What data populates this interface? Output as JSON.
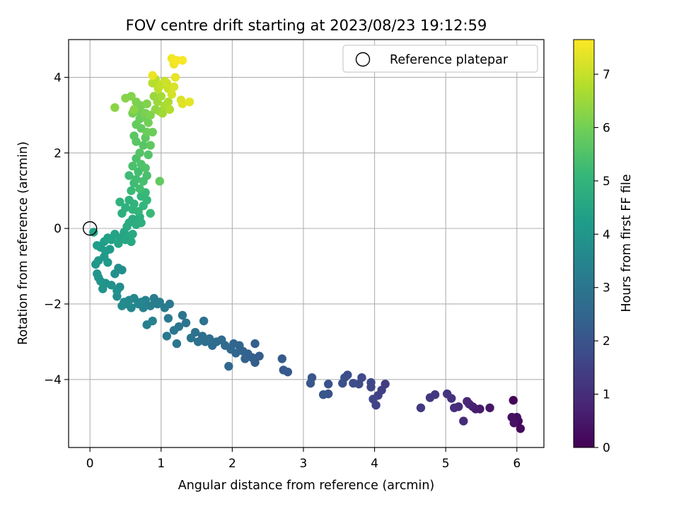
{
  "chart_data": {
    "type": "scatter",
    "title": "FOV centre drift starting at 2023/08/23 19:12:59",
    "xlabel": "Angular distance from reference (arcmin)",
    "ylabel": "Rotation from reference (arcmin)",
    "xlim": [
      -0.3,
      6.38
    ],
    "ylim": [
      -5.8,
      5.0
    ],
    "xticks": [
      0,
      1,
      2,
      3,
      4,
      5,
      6
    ],
    "yticks": [
      -4,
      -2,
      0,
      2,
      4
    ],
    "grid": true,
    "legend": {
      "position": "top-right",
      "entries": [
        "Reference platepar"
      ]
    },
    "reference_point": {
      "x": 0,
      "y": 0
    },
    "colorbar": {
      "label": "Hours from first FF file",
      "colormap": "viridis",
      "range": [
        0,
        7.65
      ],
      "ticks": [
        0,
        1,
        2,
        3,
        4,
        5,
        6,
        7
      ]
    },
    "colormap_stops": [
      "#440154",
      "#482878",
      "#3e4989",
      "#31688e",
      "#26828e",
      "#1f9e89",
      "#35b779",
      "#6ece58",
      "#b5de2b",
      "#fde725"
    ],
    "points": [
      [
        5.95,
        -4.55,
        0.05
      ],
      [
        5.98,
        -5.05,
        0.1
      ],
      [
        6.02,
        -5.1,
        0.15
      ],
      [
        6.05,
        -5.3,
        0.2
      ],
      [
        6.0,
        -5.0,
        0.25
      ],
      [
        5.93,
        -5.0,
        0.3
      ],
      [
        5.96,
        -5.15,
        0.35
      ],
      [
        5.62,
        -4.75,
        0.45
      ],
      [
        5.48,
        -4.78,
        0.55
      ],
      [
        5.42,
        -4.78,
        0.62
      ],
      [
        5.38,
        -4.72,
        0.68
      ],
      [
        5.33,
        -4.65,
        0.75
      ],
      [
        5.3,
        -4.58,
        0.82
      ],
      [
        5.25,
        -5.1,
        0.9
      ],
      [
        5.18,
        -4.72,
        0.97
      ],
      [
        5.12,
        -4.75,
        1.03
      ],
      [
        5.08,
        -4.5,
        1.08
      ],
      [
        5.02,
        -4.38,
        1.13
      ],
      [
        4.85,
        -4.4,
        1.2
      ],
      [
        4.78,
        -4.48,
        1.26
      ],
      [
        4.65,
        -4.75,
        1.32
      ],
      [
        4.15,
        -4.12,
        1.4
      ],
      [
        4.1,
        -4.28,
        1.45
      ],
      [
        4.05,
        -4.42,
        1.5
      ],
      [
        4.02,
        -4.68,
        1.55
      ],
      [
        3.98,
        -4.52,
        1.6
      ],
      [
        3.95,
        -4.2,
        1.65
      ],
      [
        3.95,
        -4.08,
        1.68
      ],
      [
        3.82,
        -3.95,
        1.72
      ],
      [
        3.78,
        -4.12,
        1.76
      ],
      [
        3.7,
        -4.1,
        1.8
      ],
      [
        3.62,
        -3.88,
        1.84
      ],
      [
        3.58,
        -3.95,
        1.88
      ],
      [
        3.55,
        -4.1,
        1.92
      ],
      [
        3.35,
        -4.12,
        1.96
      ],
      [
        3.35,
        -4.38,
        2.0
      ],
      [
        3.28,
        -4.4,
        2.03
      ],
      [
        3.12,
        -3.95,
        2.06
      ],
      [
        3.1,
        -4.1,
        2.09
      ],
      [
        2.78,
        -3.8,
        2.13
      ],
      [
        2.72,
        -3.75,
        2.16
      ],
      [
        2.7,
        -3.45,
        2.2
      ],
      [
        2.38,
        -3.38,
        2.25
      ],
      [
        2.32,
        -3.55,
        2.28
      ],
      [
        2.32,
        -3.05,
        2.31
      ],
      [
        2.28,
        -3.42,
        2.34
      ],
      [
        2.22,
        -3.32,
        2.37
      ],
      [
        2.18,
        -3.45,
        2.4
      ],
      [
        2.15,
        -3.25,
        2.43
      ],
      [
        2.1,
        -3.1,
        2.46
      ],
      [
        2.05,
        -3.3,
        2.49
      ],
      [
        2.02,
        -3.05,
        2.52
      ],
      [
        1.98,
        -3.2,
        2.55
      ],
      [
        1.95,
        -3.65,
        2.58
      ],
      [
        1.9,
        -3.1,
        2.61
      ],
      [
        1.85,
        -2.95,
        2.64
      ],
      [
        1.78,
        -3.0,
        2.67
      ],
      [
        1.72,
        -3.1,
        2.7
      ],
      [
        1.68,
        -2.92,
        2.73
      ],
      [
        1.62,
        -3.0,
        2.76
      ],
      [
        1.58,
        -2.85,
        2.79
      ],
      [
        1.52,
        -3.0,
        2.82
      ],
      [
        1.48,
        -2.75,
        2.85
      ],
      [
        1.6,
        -2.45,
        2.88
      ],
      [
        1.42,
        -2.9,
        2.91
      ],
      [
        1.35,
        -2.5,
        2.94
      ],
      [
        1.3,
        -2.3,
        2.97
      ],
      [
        1.25,
        -2.6,
        3.0
      ],
      [
        1.22,
        -3.05,
        3.03
      ],
      [
        1.18,
        -2.7,
        3.06
      ],
      [
        1.12,
        -2.0,
        3.09
      ],
      [
        1.08,
        -2.85,
        3.12
      ],
      [
        1.1,
        -2.38,
        3.15
      ],
      [
        1.05,
        -2.1,
        3.18
      ],
      [
        0.98,
        -1.95,
        3.21
      ],
      [
        0.95,
        -2.0,
        3.24
      ],
      [
        0.9,
        -1.85,
        3.27
      ],
      [
        0.85,
        -2.05,
        3.3
      ],
      [
        0.8,
        -2.55,
        3.33
      ],
      [
        0.88,
        -2.45,
        3.36
      ],
      [
        0.78,
        -1.9,
        3.39
      ],
      [
        0.75,
        -2.1,
        3.42
      ],
      [
        0.72,
        -1.95,
        3.45
      ],
      [
        0.68,
        -2.0,
        3.48
      ],
      [
        0.62,
        -1.85,
        3.51
      ],
      [
        0.58,
        -2.1,
        3.54
      ],
      [
        0.55,
        -1.9,
        3.57
      ],
      [
        0.52,
        -2.0,
        3.6
      ],
      [
        0.48,
        -1.95,
        3.63
      ],
      [
        0.45,
        -2.05,
        3.66
      ],
      [
        0.42,
        -1.55,
        3.69
      ],
      [
        0.38,
        -1.8,
        3.72
      ],
      [
        0.45,
        -1.1,
        3.75
      ],
      [
        0.4,
        -1.05,
        3.78
      ],
      [
        0.35,
        -1.2,
        3.81
      ],
      [
        0.38,
        -1.65,
        3.84
      ],
      [
        0.3,
        -1.5,
        3.87
      ],
      [
        0.22,
        -1.45,
        3.9
      ],
      [
        0.18,
        -1.6,
        3.93
      ],
      [
        0.15,
        -1.4,
        3.96
      ],
      [
        0.12,
        -1.3,
        3.99
      ],
      [
        0.1,
        -1.2,
        4.02
      ],
      [
        0.08,
        -0.95,
        4.05
      ],
      [
        0.12,
        -0.85,
        4.08
      ],
      [
        0.2,
        -0.75,
        4.11
      ],
      [
        0.25,
        -0.9,
        4.14
      ],
      [
        0.22,
        -0.6,
        4.17
      ],
      [
        0.28,
        -0.55,
        4.2
      ],
      [
        0.15,
        -0.5,
        4.23
      ],
      [
        0.1,
        -0.45,
        4.26
      ],
      [
        0.2,
        -0.35,
        4.29
      ],
      [
        0.25,
        -0.25,
        4.32
      ],
      [
        0.05,
        -0.1,
        4.35
      ],
      [
        0.3,
        -0.3,
        4.38
      ],
      [
        0.35,
        -0.15,
        4.41
      ],
      [
        0.4,
        -0.4,
        4.44
      ],
      [
        0.42,
        -0.25,
        4.47
      ],
      [
        0.48,
        -0.1,
        4.5
      ],
      [
        0.5,
        -0.3,
        4.53
      ],
      [
        0.55,
        -0.2,
        4.56
      ],
      [
        0.58,
        -0.35,
        4.59
      ],
      [
        0.6,
        -0.15,
        4.62
      ],
      [
        0.52,
        0.05,
        4.65
      ],
      [
        0.55,
        0.15,
        4.68
      ],
      [
        0.6,
        0.25,
        4.71
      ],
      [
        0.65,
        0.1,
        4.74
      ],
      [
        0.7,
        0.3,
        4.77
      ],
      [
        0.72,
        0.15,
        4.8
      ],
      [
        0.45,
        0.4,
        4.83
      ],
      [
        0.5,
        0.55,
        4.86
      ],
      [
        0.42,
        0.7,
        4.89
      ],
      [
        0.55,
        0.75,
        4.92
      ],
      [
        0.6,
        0.5,
        4.95
      ],
      [
        0.62,
        0.65,
        4.98
      ],
      [
        0.68,
        0.45,
        5.01
      ],
      [
        0.75,
        0.6,
        5.04
      ],
      [
        0.72,
        0.85,
        5.07
      ],
      [
        0.8,
        0.75,
        5.1
      ],
      [
        0.78,
        0.95,
        5.13
      ],
      [
        0.85,
        0.4,
        5.16
      ],
      [
        0.58,
        1.0,
        5.19
      ],
      [
        0.62,
        1.2,
        5.22
      ],
      [
        0.55,
        1.4,
        5.25
      ],
      [
        0.65,
        1.3,
        5.28
      ],
      [
        0.7,
        1.05,
        5.31
      ],
      [
        0.68,
        1.5,
        5.34
      ],
      [
        0.75,
        1.25,
        5.37
      ],
      [
        0.8,
        1.4,
        5.4
      ],
      [
        0.6,
        1.65,
        5.43
      ],
      [
        0.65,
        1.85,
        5.46
      ],
      [
        0.72,
        1.7,
        5.49
      ],
      [
        0.78,
        1.6,
        5.52
      ],
      [
        0.82,
        1.95,
        5.55
      ],
      [
        0.7,
        2.0,
        5.58
      ],
      [
        0.75,
        2.2,
        5.61
      ],
      [
        0.65,
        2.3,
        5.64
      ],
      [
        0.62,
        2.45,
        5.67
      ],
      [
        0.78,
        2.4,
        5.7
      ],
      [
        0.85,
        2.2,
        5.73
      ],
      [
        0.98,
        1.25,
        5.76
      ],
      [
        0.72,
        2.65,
        5.79
      ],
      [
        0.65,
        2.75,
        5.82
      ],
      [
        0.7,
        2.9,
        5.85
      ],
      [
        0.8,
        2.55,
        5.88
      ],
      [
        0.88,
        2.55,
        5.91
      ],
      [
        0.75,
        2.95,
        5.94
      ],
      [
        0.68,
        3.1,
        5.97
      ],
      [
        0.82,
        2.8,
        6.0
      ],
      [
        0.6,
        3.05,
        6.03
      ],
      [
        0.72,
        3.25,
        6.06
      ],
      [
        0.78,
        3.05,
        6.09
      ],
      [
        0.65,
        3.35,
        6.12
      ],
      [
        0.85,
        3.0,
        6.15
      ],
      [
        0.8,
        3.3,
        6.18
      ],
      [
        0.58,
        3.5,
        6.21
      ],
      [
        0.5,
        3.45,
        6.24
      ],
      [
        0.62,
        3.15,
        6.27
      ],
      [
        0.35,
        3.2,
        6.3
      ],
      [
        0.92,
        3.15,
        6.35
      ],
      [
        0.98,
        3.1,
        6.4
      ],
      [
        0.9,
        3.5,
        6.45
      ],
      [
        0.95,
        3.35,
        6.5
      ],
      [
        1.02,
        3.05,
        6.55
      ],
      [
        1.0,
        3.5,
        6.6
      ],
      [
        1.05,
        3.25,
        6.65
      ],
      [
        1.1,
        3.35,
        6.7
      ],
      [
        1.12,
        3.15,
        6.75
      ],
      [
        0.88,
        3.85,
        6.8
      ],
      [
        0.92,
        3.95,
        6.85
      ],
      [
        0.96,
        3.7,
        6.9
      ],
      [
        1.0,
        3.8,
        6.95
      ],
      [
        1.05,
        3.9,
        7.0
      ],
      [
        1.1,
        3.7,
        7.05
      ],
      [
        1.08,
        3.85,
        7.1
      ],
      [
        1.15,
        3.55,
        7.15
      ],
      [
        1.18,
        3.75,
        7.2
      ],
      [
        1.28,
        3.4,
        7.25
      ],
      [
        1.3,
        3.3,
        7.3
      ],
      [
        1.4,
        3.35,
        7.35
      ],
      [
        1.2,
        4.0,
        7.4
      ],
      [
        0.88,
        4.05,
        7.43
      ],
      [
        1.18,
        4.35,
        7.48
      ],
      [
        1.15,
        4.5,
        7.52
      ],
      [
        1.22,
        4.45,
        7.56
      ],
      [
        1.3,
        4.45,
        7.6
      ]
    ]
  }
}
